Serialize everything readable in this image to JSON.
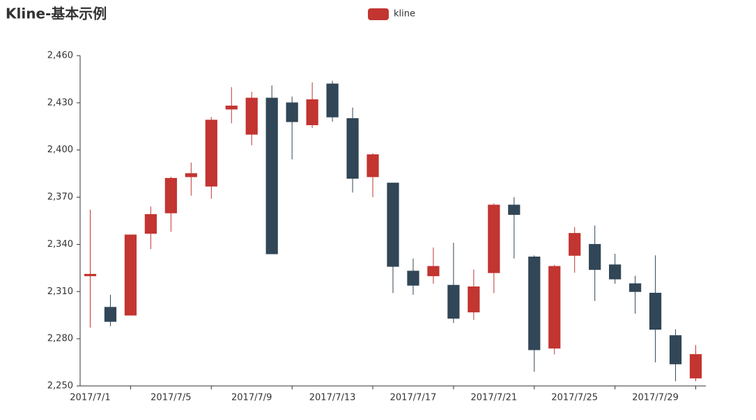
{
  "chart_data": {
    "type": "candlestick",
    "title": "Kline-基本示例",
    "categories": [
      "2017/7/1",
      null,
      null,
      null,
      "2017/7/5",
      null,
      null,
      null,
      "2017/7/9",
      null,
      null,
      null,
      "2017/7/13",
      null,
      null,
      null,
      "2017/7/17",
      null,
      null,
      null,
      "2017/7/21",
      null,
      null,
      null,
      "2017/7/25",
      null,
      null,
      null,
      "2017/7/29",
      null,
      null
    ],
    "series": [
      {
        "name": "kline",
        "up_color": "#c23531",
        "down_color": "#314656",
        "values": [
          [
            2320,
            2321,
            2287,
            2362
          ],
          [
            2300,
            2291,
            2288,
            2308
          ],
          [
            2295,
            2346,
            2295,
            2346
          ],
          [
            2347,
            2359,
            2337,
            2364
          ],
          [
            2360,
            2382,
            2348,
            2383
          ],
          [
            2383,
            2385,
            2371,
            2392
          ],
          [
            2377,
            2419,
            2369,
            2421
          ],
          [
            2426,
            2428,
            2417,
            2440
          ],
          [
            2410,
            2433,
            2403,
            2437
          ],
          [
            2433,
            2334,
            2334,
            2441
          ],
          [
            2430,
            2418,
            2394,
            2434
          ],
          [
            2416,
            2432,
            2414,
            2443
          ],
          [
            2442,
            2421,
            2418,
            2444
          ],
          [
            2420,
            2382,
            2373,
            2427
          ],
          [
            2383,
            2397,
            2370,
            2398
          ],
          [
            2379,
            2326,
            2309,
            2379
          ],
          [
            2323,
            2314,
            2308,
            2331
          ],
          [
            2320,
            2326,
            2315,
            2338
          ],
          [
            2314,
            2293,
            2290,
            2341
          ],
          [
            2297,
            2313,
            2292,
            2324
          ],
          [
            2322,
            2365,
            2309,
            2366
          ],
          [
            2365,
            2359,
            2331,
            2370
          ],
          [
            2332,
            2273,
            2259,
            2333
          ],
          [
            2274,
            2326,
            2270,
            2327
          ],
          [
            2333,
            2347,
            2322,
            2351
          ],
          [
            2340,
            2324,
            2304,
            2352
          ],
          [
            2327,
            2318,
            2315,
            2334
          ],
          [
            2315,
            2310,
            2296,
            2320
          ],
          [
            2309,
            2286,
            2265,
            2333
          ],
          [
            2282,
            2264,
            2253,
            2286
          ],
          [
            2255,
            2270,
            2253,
            2276
          ]
        ]
      }
    ],
    "ylim": [
      2250,
      2460
    ],
    "yticks": [
      {
        "value": 2250,
        "label": "2,250"
      },
      {
        "value": 2280,
        "label": "2,280"
      },
      {
        "value": 2310,
        "label": "2,310"
      },
      {
        "value": 2340,
        "label": "2,340"
      },
      {
        "value": 2370,
        "label": "2,370"
      },
      {
        "value": 2400,
        "label": "2,400"
      },
      {
        "value": 2430,
        "label": "2,430"
      },
      {
        "value": 2460,
        "label": "2,460"
      }
    ],
    "grid": false,
    "legend": "top"
  }
}
